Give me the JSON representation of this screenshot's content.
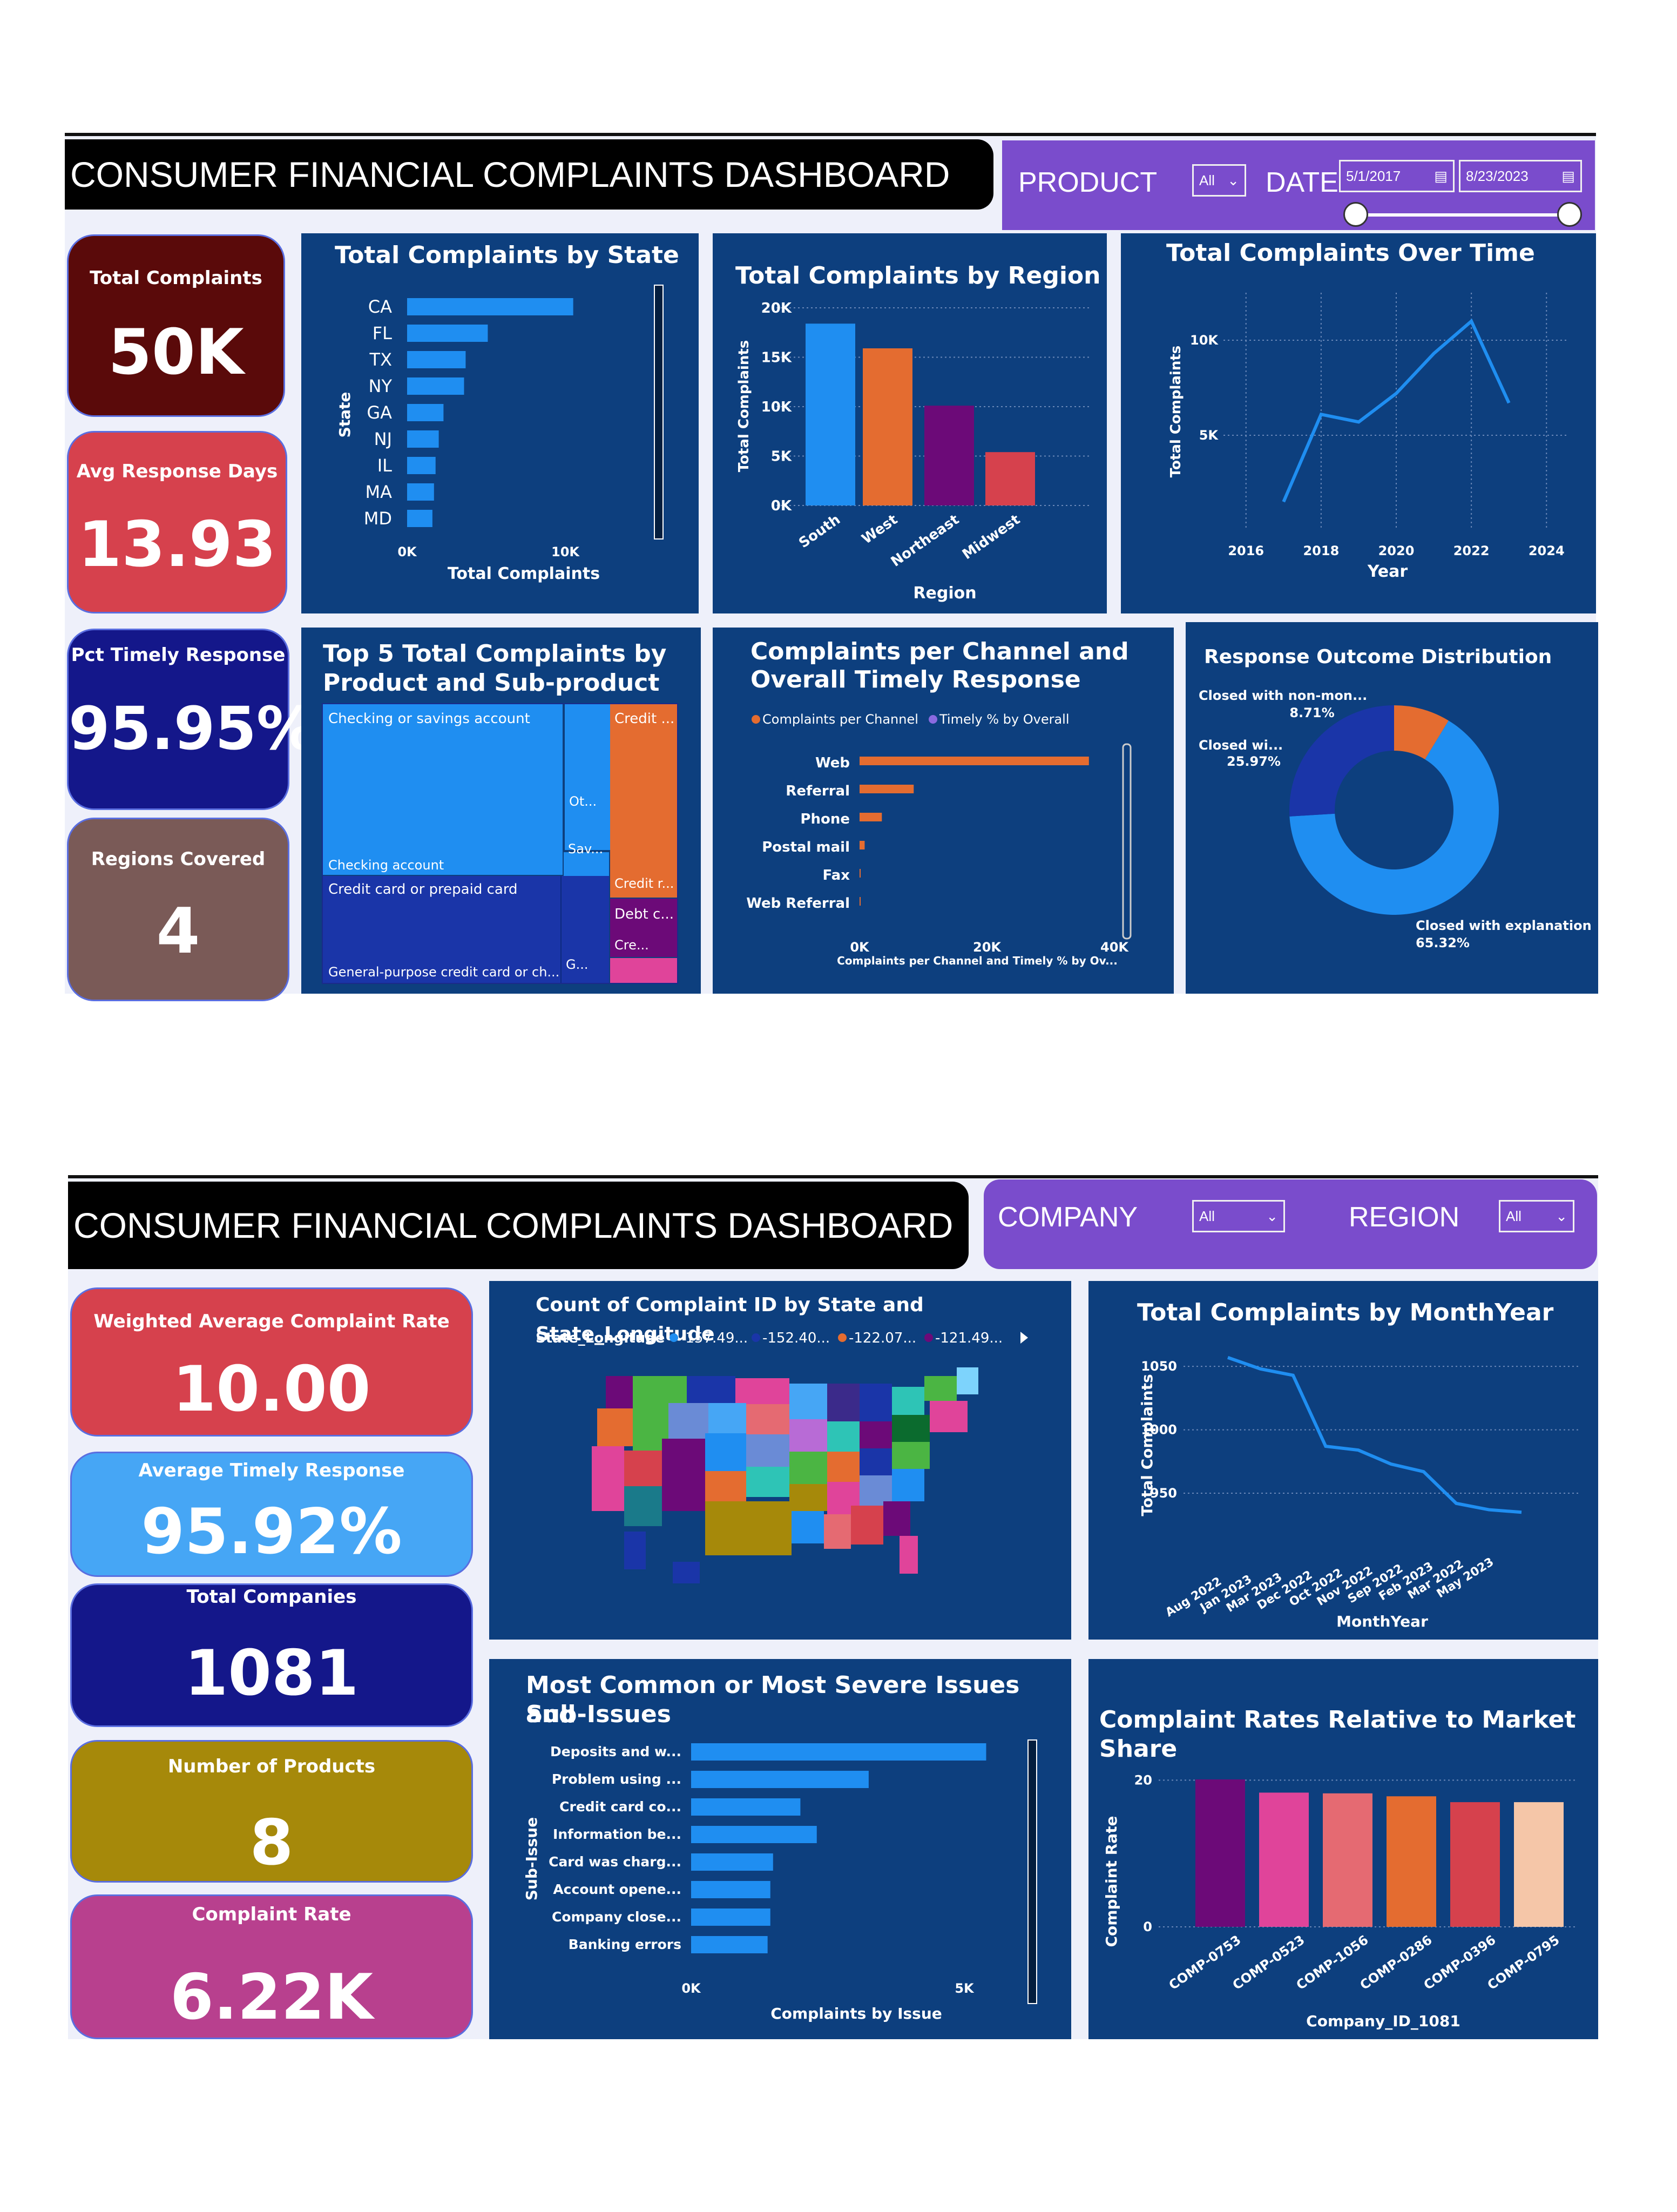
{
  "d1": {
    "title": "CONSUMER FINANCIAL COMPLAINTS DASHBOARD",
    "filters": {
      "product_label": "PRODUCT",
      "product_value": "All",
      "date_label": "DATE",
      "date_from": "5/1/2017",
      "date_to": "8/23/2023"
    },
    "kpis": [
      {
        "label": "Total Complaints",
        "value": "50K"
      },
      {
        "label": "Avg Response Days",
        "value": "13.93"
      },
      {
        "label": "Pct Timely Response",
        "value": "95.95%"
      },
      {
        "label": "Regions Covered",
        "value": "4"
      }
    ],
    "state_chart": {
      "title": "Total Complaints by State",
      "ylabel": "State",
      "xlabel": "Total Complaints",
      "ticks": [
        "0K",
        "10K"
      ]
    },
    "region_chart": {
      "title": "Total Complaints by Region",
      "ylabel": "Total Complaints",
      "xlabel": "Region",
      "ticks": [
        "0K",
        "5K",
        "10K",
        "15K",
        "20K"
      ]
    },
    "time_chart": {
      "title": "Total Complaints Over Time",
      "ylabel": "Total Complaints",
      "xlabel": "Year",
      "yticks": [
        "5K",
        "10K"
      ],
      "xticks": [
        "2016",
        "2018",
        "2020",
        "2022",
        "2024"
      ]
    },
    "treemap": {
      "title_l1": "Top 5 Total Complaints by",
      "title_l2": "Product and Sub-product",
      "labels": {
        "checking": "Checking or savings account",
        "checking_sub": "Checking account",
        "ot": "Ot...",
        "sav": "Sav...",
        "credit": "Credit ...",
        "credit_r": "Credit r...",
        "debt": "Debt c...",
        "cre": "Cre...",
        "card": "Credit card or prepaid card",
        "card_sub": "General-purpose credit card or ch...",
        "g": "G..."
      }
    },
    "channel_chart": {
      "title_l1": "Complaints per Channel and",
      "title_l2": "Overall Timely Response",
      "legend_a": "Complaints per Channel",
      "legend_b": "Timely % by Overall",
      "xlabel": "Complaints per Channel and Timely % by Ov...",
      "ticks": [
        "0K",
        "20K",
        "40K"
      ]
    },
    "donut": {
      "title": "Response Outcome Distribution",
      "lbl_a": "Closed with non-mon...",
      "pct_a": "8.71%",
      "lbl_b": "Closed wi...",
      "pct_b": "25.97%",
      "lbl_c": "Closed with explanation",
      "pct_c": "65.32%"
    }
  },
  "d2": {
    "title": "CONSUMER FINANCIAL COMPLAINTS DASHBOARD",
    "filters": {
      "company_label": "COMPANY",
      "company_value": "All",
      "region_label": "REGION",
      "region_value": "All"
    },
    "kpis": [
      {
        "label": "Weighted Average Complaint Rate",
        "value": "10.00"
      },
      {
        "label": "Average Timely Response",
        "value": "95.92%"
      },
      {
        "label": "Total Companies",
        "value": "1081"
      },
      {
        "label": "Number of Products",
        "value": "8"
      },
      {
        "label": "Complaint Rate",
        "value": "6.22K"
      }
    ],
    "map": {
      "title": "Count of Complaint ID by State and State_Longitude",
      "legend_title": "State_Longitude",
      "legend": [
        "-157.49...",
        "-152.40...",
        "-122.07...",
        "-121.49..."
      ]
    },
    "month_chart": {
      "title": "Total Complaints by MonthYear",
      "ylabel": "Total Complaints",
      "xlabel": "MonthYear",
      "yticks": [
        "950",
        "1000",
        "1050"
      ]
    },
    "issues_chart": {
      "title_l1": "Most Common or Most Severe Issues and",
      "title_l2": "Sub-Issues",
      "ylabel": "Sub-Issue",
      "xlabel": "Complaints by Issue",
      "ticks": [
        "0K",
        "5K"
      ]
    },
    "rates_chart": {
      "title": "Complaint Rates Relative to Market Share",
      "ylabel": "Complaint Rate",
      "xlabel": "Company_ID_1081",
      "yticks": [
        "0",
        "20"
      ]
    }
  },
  "chart_data": [
    {
      "id": "state",
      "type": "bar",
      "orientation": "horizontal",
      "title": "Total Complaints by State",
      "categories": [
        "CA",
        "FL",
        "TX",
        "NY",
        "GA",
        "NJ",
        "IL",
        "MA",
        "MD"
      ],
      "values": [
        10500,
        5100,
        3700,
        3600,
        2300,
        2000,
        1800,
        1700,
        1600
      ],
      "xlim": [
        0,
        15000
      ],
      "color": "#1f8ef1"
    },
    {
      "id": "region",
      "type": "bar",
      "title": "Total Complaints by Region",
      "categories": [
        "South",
        "West",
        "Northeast",
        "Midwest"
      ],
      "values": [
        18400,
        15900,
        10100,
        5400
      ],
      "colors": [
        "#1f8ef1",
        "#e46c30",
        "#6c0a78",
        "#d6414d"
      ],
      "ylim": [
        0,
        20000
      ]
    },
    {
      "id": "time",
      "type": "line",
      "title": "Total Complaints Over Time",
      "x": [
        2017,
        2018,
        2019,
        2020,
        2021,
        2022,
        2023
      ],
      "values": [
        1500,
        6100,
        5700,
        7200,
        9300,
        11000,
        6700
      ],
      "xlim": [
        2015.4,
        2024.6
      ],
      "ylim": [
        0,
        12500
      ]
    },
    {
      "id": "channel",
      "type": "bar",
      "orientation": "horizontal",
      "title": "Complaints per Channel and Overall Timely Response",
      "categories": [
        "Web",
        "Referral",
        "Phone",
        "Postal mail",
        "Fax",
        "Web Referral"
      ],
      "values": [
        36000,
        8500,
        3500,
        800,
        100,
        50
      ],
      "xlim": [
        0,
        42000
      ]
    },
    {
      "id": "outcome",
      "type": "pie",
      "title": "Response Outcome Distribution",
      "categories": [
        "Closed with explanation",
        "Closed wi...",
        "Closed with non-mon..."
      ],
      "values": [
        65.32,
        25.97,
        8.71
      ],
      "colors": [
        "#1f8ef1",
        "#1a35a8",
        "#e46c30"
      ]
    },
    {
      "id": "month",
      "type": "line",
      "title": "Total Complaints by MonthYear",
      "categories": [
        "Aug 2022",
        "Jan 2023",
        "Mar 2023",
        "Dec 2022",
        "Oct 2022",
        "Nov 2022",
        "Sep 2022",
        "Feb 2023",
        "Mar 2022",
        "May 2023"
      ],
      "values": [
        1057,
        1048,
        1043,
        987,
        984,
        973,
        967,
        942,
        937,
        935
      ],
      "ylim": [
        930,
        1062
      ]
    },
    {
      "id": "issues",
      "type": "bar",
      "orientation": "horizontal",
      "title": "Most Common or Most Severe Issues and Sub-Issues",
      "categories": [
        "Deposits and w...",
        "Problem using ...",
        "Credit card co...",
        "Information be...",
        "Card was charg...",
        "Account opene...",
        "Company close...",
        "Banking errors"
      ],
      "values": [
        5400,
        3250,
        2000,
        2300,
        1500,
        1450,
        1450,
        1400
      ],
      "xlim": [
        0,
        6500
      ]
    },
    {
      "id": "rates",
      "type": "bar",
      "title": "Complaint Rates Relative to Market Share",
      "categories": [
        "COMP-0753",
        "COMP-0523",
        "COMP-1056",
        "COMP-0286",
        "COMP-0396",
        "COMP-0795"
      ],
      "values": [
        20.1,
        18.3,
        18.2,
        17.8,
        17.0,
        17.0
      ],
      "colors": [
        "#6c0a78",
        "#e0449a",
        "#e56a72",
        "#e46c30",
        "#d6414d",
        "#f5c6a8"
      ],
      "ylim": [
        0,
        24
      ]
    }
  ]
}
